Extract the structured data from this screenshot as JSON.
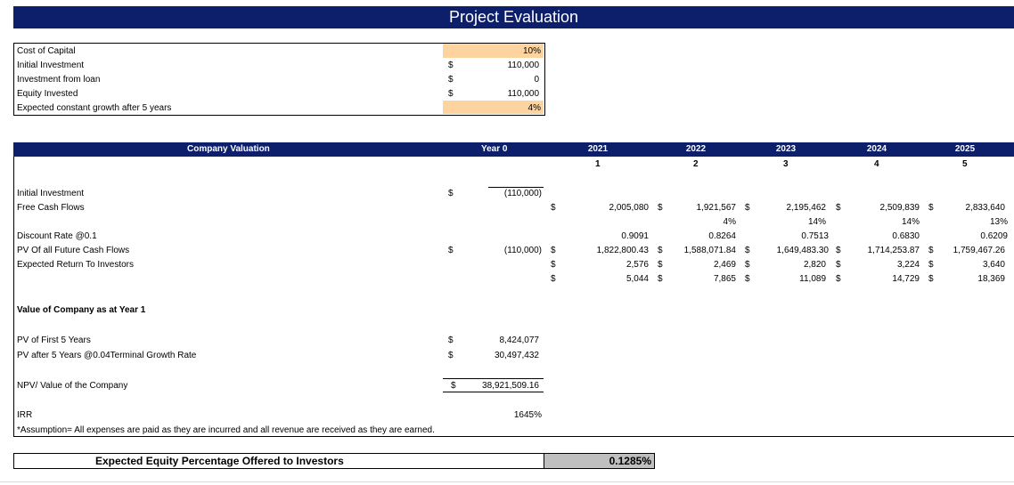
{
  "title": "Project Evaluation",
  "inputs": {
    "rows": [
      {
        "label": "Cost of Capital",
        "cur": "",
        "value": "10%"
      },
      {
        "label": "Initial Investment",
        "cur": "$",
        "value": "110,000"
      },
      {
        "label": "Investment from loan",
        "cur": "$",
        "value": "0"
      },
      {
        "label": "Equity Invested",
        "cur": "$",
        "value": "110,000"
      },
      {
        "label": "Expected constant growth after 5 years",
        "cur": "",
        "value": "4%"
      }
    ]
  },
  "valuation": {
    "header_label": "Company Valuation",
    "year0_label": "Year 0",
    "years": [
      "2021",
      "2022",
      "2023",
      "2024",
      "2025"
    ],
    "periods": [
      "1",
      "2",
      "3",
      "4",
      "5"
    ],
    "rows": {
      "initial_investment": {
        "label": "Initial Investment",
        "cur": "$",
        "y0": "(110,000)"
      },
      "free_cash_flows": {
        "label": "Free Cash Flows",
        "cur0": "$",
        "values": [
          "2,005,080",
          "1,921,567",
          "2,195,462",
          "2,509,839",
          "2,833,640"
        ]
      },
      "growth": {
        "values": [
          "4%",
          "14%",
          "14%",
          "13%"
        ]
      },
      "discount_rate": {
        "label": "Discount Rate @0.1",
        "values": [
          "0.9091",
          "0.8264",
          "0.7513",
          "0.6830",
          "0.6209"
        ]
      },
      "pv_future": {
        "label": "PV Of all Future Cash Flows",
        "cur": "$",
        "y0": "(110,000)",
        "cur0": "$",
        "values": [
          "1,822,800.43",
          "1,588,071.84",
          "1,649,483.30",
          "1,714,253.87",
          "1,759,467.26"
        ]
      },
      "expected_return": {
        "label": "Expected Return To Investors",
        "cur0": "$",
        "values": [
          "2,576",
          "2,469",
          "2,820",
          "3,224",
          "3,640"
        ]
      },
      "cumulative": {
        "cur0": "$",
        "values": [
          "5,044",
          "7,865",
          "11,089",
          "14,729",
          "18,369"
        ]
      }
    },
    "value_heading": "Value of Company as at Year 1",
    "pv_first5": {
      "label": "PV of First 5 Years",
      "cur": "$",
      "value": "8,424,077"
    },
    "pv_after5": {
      "label": "PV after 5 Years @0.04Terminal Growth Rate",
      "cur": "$",
      "value": "30,497,432"
    },
    "npv": {
      "label": "NPV/ Value of the Company",
      "cur": "$",
      "value": "38,921,509.16"
    },
    "irr": {
      "label": "IRR",
      "value": "1645%"
    },
    "assumption": "*Assumption= All expenses are paid as they are incurred and all revenue are received as they are earned."
  },
  "equity": {
    "label": "Expected Equity Percentage Offered to Investors",
    "value": "0.1285%"
  },
  "colors": {
    "navy": "#0d1e6b",
    "orange": "#fdd4a0",
    "gray": "#bfbfbf"
  }
}
